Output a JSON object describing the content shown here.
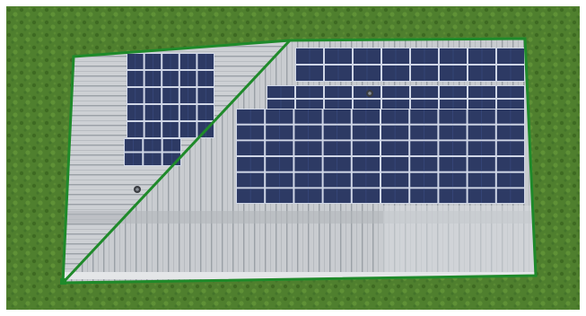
{
  "image": {
    "subject": "aerial-rooftop-solar-installation",
    "colors": {
      "grass": "#4f7f2e",
      "grass_dark": "#3e6a22",
      "grass_light": "#5f9136",
      "roof": "#c9ccd0",
      "roof_shadow": "#a9adb2",
      "roof_seam": "#8e9399",
      "panel": "#2d3a64",
      "panel_cell": "#3a4c82",
      "panel_grid": "#cfd6e6",
      "outline": "#1f8a2a",
      "frame": "#ffffff"
    },
    "panel_arrays": [
      {
        "name": "upper-left-array",
        "rows": 5,
        "cols": 5,
        "region": "left-triangle"
      },
      {
        "name": "lower-left-array",
        "rows": 2,
        "cols": 3,
        "region": "left-triangle"
      },
      {
        "name": "upper-right-array",
        "rows": 2,
        "cols": 8,
        "region": "right-section"
      },
      {
        "name": "middle-right-array",
        "rows": 2,
        "cols": 9,
        "region": "right-section"
      },
      {
        "name": "main-right-array",
        "rows": 6,
        "cols": 10,
        "region": "right-section"
      }
    ]
  }
}
